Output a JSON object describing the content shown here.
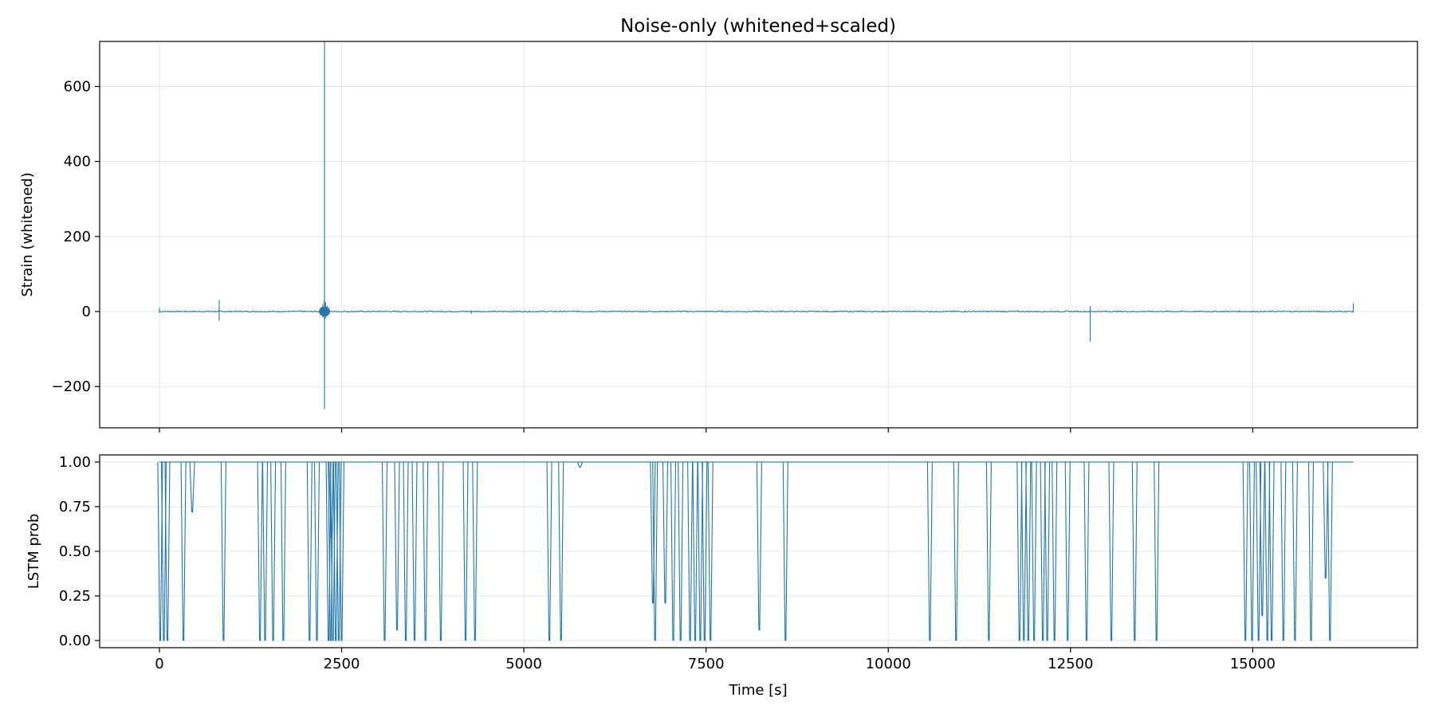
{
  "chart_data": [
    {
      "type": "line",
      "title": "Noise-only (whitened+scaled)",
      "xlabel": "",
      "ylabel": "Strain (whitened)",
      "xlim": [
        -820,
        17260
      ],
      "ylim": [
        -310,
        720
      ],
      "xticks": [
        0,
        2500,
        5000,
        7500,
        10000,
        12500,
        15000
      ],
      "yticks": [
        -200,
        0,
        200,
        400,
        600
      ],
      "ytick_labels": [
        "−200",
        "0",
        "200",
        "400",
        "600"
      ],
      "grid": true,
      "color": "#1f77b4",
      "baseline": {
        "x": [
          0,
          16380
        ],
        "y": 0,
        "noise": 1.5
      },
      "spikes": [
        {
          "x": 0,
          "min": -4,
          "max": 10
        },
        {
          "x": 820,
          "min": -25,
          "max": 30
        },
        {
          "x": 2220,
          "min": -10,
          "max": 12
        },
        {
          "x": 2240,
          "min": -15,
          "max": 20
        },
        {
          "x": 2260,
          "min": -20,
          "max": 30
        },
        {
          "x": 2265,
          "min": -260,
          "max": 720
        },
        {
          "x": 2280,
          "min": -18,
          "max": 25
        },
        {
          "x": 2300,
          "min": -12,
          "max": 15
        },
        {
          "x": 2320,
          "min": -8,
          "max": 10
        },
        {
          "x": 4280,
          "min": -6,
          "max": 2
        },
        {
          "x": 12770,
          "min": -80,
          "max": 15
        },
        {
          "x": 16380,
          "min": -3,
          "max": 22
        }
      ]
    },
    {
      "type": "line",
      "title": "",
      "xlabel": "Time [s]",
      "ylabel": "LSTM prob",
      "xlim": [
        -820,
        17260
      ],
      "ylim": [
        -0.04,
        1.04
      ],
      "xticks": [
        0,
        2500,
        5000,
        7500,
        10000,
        12500,
        15000
      ],
      "yticks": [
        0.0,
        0.25,
        0.5,
        0.75,
        1.0
      ],
      "ytick_labels": [
        "0.00",
        "0.25",
        "0.50",
        "0.75",
        "1.00"
      ],
      "grid": true,
      "color": "#1f77b4",
      "baseline": {
        "x": [
          0,
          16380
        ],
        "y": 1.0
      },
      "dips": [
        [
          10,
          0.0
        ],
        [
          60,
          0.0
        ],
        [
          110,
          0.0
        ],
        [
          330,
          0.0
        ],
        [
          450,
          0.72
        ],
        [
          880,
          0.0
        ],
        [
          1380,
          0.0
        ],
        [
          1450,
          0.0
        ],
        [
          1560,
          0.0
        ],
        [
          1700,
          0.0
        ],
        [
          2060,
          0.0
        ],
        [
          2160,
          0.0
        ],
        [
          2320,
          0.0
        ],
        [
          2350,
          0.0
        ],
        [
          2360,
          0.58
        ],
        [
          2380,
          0.0
        ],
        [
          2420,
          0.0
        ],
        [
          2460,
          0.0
        ],
        [
          2500,
          0.0
        ],
        [
          3090,
          0.0
        ],
        [
          3260,
          0.06
        ],
        [
          3380,
          0.0
        ],
        [
          3500,
          0.0
        ],
        [
          3650,
          0.0
        ],
        [
          3860,
          0.0
        ],
        [
          4200,
          0.0
        ],
        [
          4330,
          0.0
        ],
        [
          5350,
          0.0
        ],
        [
          5510,
          0.0
        ],
        [
          5770,
          0.97
        ],
        [
          6770,
          0.21
        ],
        [
          6800,
          0.0
        ],
        [
          6940,
          0.21
        ],
        [
          7050,
          0.0
        ],
        [
          7150,
          0.0
        ],
        [
          7280,
          0.0
        ],
        [
          7350,
          0.0
        ],
        [
          7420,
          0.0
        ],
        [
          7480,
          0.0
        ],
        [
          7560,
          0.0
        ],
        [
          8230,
          0.06
        ],
        [
          8590,
          0.0
        ],
        [
          10570,
          0.0
        ],
        [
          10930,
          0.0
        ],
        [
          11380,
          0.0
        ],
        [
          11800,
          0.0
        ],
        [
          11860,
          0.0
        ],
        [
          11920,
          0.0
        ],
        [
          12000,
          0.0
        ],
        [
          12120,
          0.0
        ],
        [
          12180,
          0.0
        ],
        [
          12280,
          0.0
        ],
        [
          12460,
          0.0
        ],
        [
          12720,
          0.0
        ],
        [
          13060,
          0.0
        ],
        [
          13380,
          0.0
        ],
        [
          13680,
          0.0
        ],
        [
          14900,
          0.0
        ],
        [
          14990,
          0.0
        ],
        [
          15080,
          0.0
        ],
        [
          15130,
          0.14
        ],
        [
          15200,
          0.0
        ],
        [
          15260,
          0.0
        ],
        [
          15420,
          0.0
        ],
        [
          15580,
          0.0
        ],
        [
          15800,
          0.0
        ],
        [
          16000,
          0.35
        ],
        [
          16060,
          0.0
        ]
      ]
    }
  ]
}
